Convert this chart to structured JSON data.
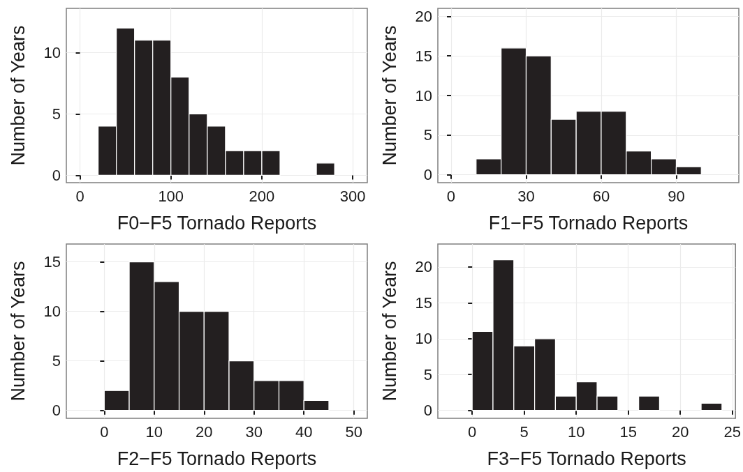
{
  "chart_data": [
    {
      "type": "histogram",
      "xlabel": "F0−F5 Tornado Reports",
      "ylabel": "Number of Years",
      "color": "#231f20",
      "grid": true,
      "bins": [
        20,
        40,
        60,
        80,
        100,
        120,
        140,
        160,
        180,
        200,
        220,
        240,
        260,
        280
      ],
      "values": [
        4,
        12,
        11,
        11,
        8,
        5,
        4,
        2,
        2,
        2,
        0,
        0,
        1
      ],
      "xlim": [
        -15,
        316
      ],
      "xticks": [
        0,
        100,
        200,
        300
      ],
      "ylim": [
        -0.6,
        13.6
      ],
      "yticks": [
        0,
        5,
        10
      ]
    },
    {
      "type": "histogram",
      "xlabel": "F1−F5 Tornado Reports",
      "ylabel": "Number of Years",
      "color": "#231f20",
      "grid": true,
      "bins": [
        10,
        20,
        30,
        40,
        50,
        60,
        70,
        80,
        90,
        100
      ],
      "values": [
        2,
        16,
        15,
        7,
        8,
        8,
        3,
        2,
        1
      ],
      "xlim": [
        -5.3,
        115
      ],
      "xticks": [
        0,
        30,
        60,
        90
      ],
      "ylim": [
        -1,
        21
      ],
      "yticks": [
        0,
        5,
        10,
        15,
        20
      ]
    },
    {
      "type": "histogram",
      "xlabel": "F2−F5 Tornado Reports",
      "ylabel": "Number of Years",
      "color": "#231f20",
      "grid": true,
      "bins": [
        0,
        5,
        10,
        15,
        20,
        25,
        30,
        35,
        40,
        45
      ],
      "values": [
        2,
        15,
        13,
        10,
        10,
        5,
        3,
        3,
        1
      ],
      "xlim": [
        -7.6,
        52.7
      ],
      "xticks": [
        0,
        10,
        20,
        30,
        40,
        50
      ],
      "ylim": [
        -0.8,
        16.8
      ],
      "yticks": [
        0,
        5,
        10,
        15
      ]
    },
    {
      "type": "histogram",
      "xlabel": "F3−F5 Tornado Reports",
      "ylabel": "Number of Years",
      "color": "#231f20",
      "grid": true,
      "bins": [
        0,
        2,
        4,
        6,
        8,
        10,
        12,
        14,
        16,
        18,
        20,
        22,
        24
      ],
      "values": [
        11,
        21,
        9,
        10,
        2,
        4,
        2,
        0,
        2,
        0,
        0,
        1
      ],
      "xlim": [
        -3.3,
        25.3
      ],
      "xticks": [
        0,
        5,
        10,
        15,
        20,
        25
      ],
      "ylim": [
        -1.1,
        23.2
      ],
      "yticks": [
        0,
        5,
        10,
        15,
        20
      ]
    }
  ]
}
